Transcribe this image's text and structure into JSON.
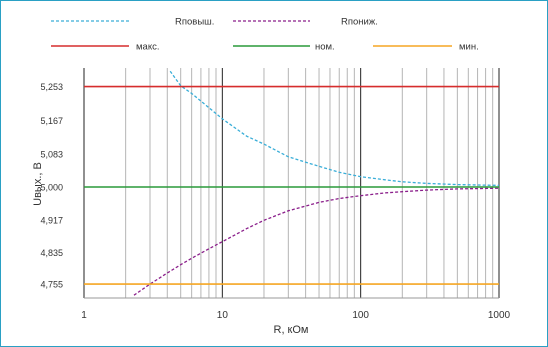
{
  "chart_data": {
    "type": "line",
    "xlabel": "R, кОм",
    "ylabel": "Uвых., В",
    "xscale": "log",
    "xlim": [
      1,
      1000
    ],
    "ylim": [
      4.72,
      5.3
    ],
    "grid": true,
    "legend_position": "top",
    "x_ticks": [
      {
        "value": 1,
        "label": "1"
      },
      {
        "value": 10,
        "label": "10"
      },
      {
        "value": 100,
        "label": "100"
      },
      {
        "value": 1000,
        "label": "1000"
      }
    ],
    "y_ticks": [
      {
        "value": 4.755,
        "label": "4,755"
      },
      {
        "value": 4.835,
        "label": "4,835"
      },
      {
        "value": 4.917,
        "label": "4,917"
      },
      {
        "value": 5.0,
        "label": "5,000"
      },
      {
        "value": 5.083,
        "label": "5,083"
      },
      {
        "value": 5.167,
        "label": "5,167"
      },
      {
        "value": 5.253,
        "label": "5,253"
      }
    ],
    "series": [
      {
        "name": "Rповыш.",
        "color": "#3aaed8",
        "dashed": true,
        "x": [
          4.2,
          5,
          6,
          8,
          10,
          15,
          20,
          30,
          50,
          70,
          100,
          150,
          200,
          300,
          500,
          700,
          1000
        ],
        "y": [
          5.292,
          5.255,
          5.236,
          5.2,
          5.172,
          5.128,
          5.108,
          5.076,
          5.052,
          5.037,
          5.026,
          5.018,
          5.013,
          5.009,
          5.006,
          5.005,
          5.004
        ]
      },
      {
        "name": "Rпониж.",
        "color": "#8b1f8b",
        "dashed": true,
        "x": [
          2.3,
          3,
          4,
          5,
          6,
          8,
          10,
          15,
          20,
          30,
          50,
          70,
          100,
          150,
          200,
          300,
          500,
          700,
          1000
        ],
        "y": [
          4.727,
          4.755,
          4.783,
          4.804,
          4.82,
          4.844,
          4.862,
          4.895,
          4.916,
          4.94,
          4.961,
          4.971,
          4.978,
          4.985,
          4.988,
          4.992,
          4.995,
          4.996,
          4.997
        ]
      },
      {
        "name": "макс.",
        "color": "#d62d2d",
        "dashed": false,
        "x": [
          1,
          1000
        ],
        "y": [
          5.253,
          5.253
        ]
      },
      {
        "name": "ном.",
        "color": "#2a9a3a",
        "dashed": false,
        "x": [
          1,
          1000
        ],
        "y": [
          5.0,
          5.0
        ]
      },
      {
        "name": "мин.",
        "color": "#f5a623",
        "dashed": false,
        "x": [
          1,
          1000
        ],
        "y": [
          4.755,
          4.755
        ]
      }
    ]
  }
}
